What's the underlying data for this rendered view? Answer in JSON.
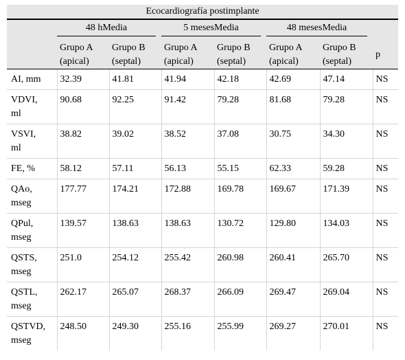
{
  "table": {
    "title": "Ecocardiografía postimplante",
    "groups": [
      "48 hMedia",
      "5 mesesMedia",
      "48 mesesMedia"
    ],
    "subheaders": [
      [
        "Grupo A",
        "(apical)"
      ],
      [
        "Grupo B",
        "(septal)"
      ],
      [
        "Grupo A",
        "(apical)"
      ],
      [
        "Grupo B",
        "(septal)"
      ],
      [
        "Grupo A",
        "(apical)"
      ],
      [
        "Grupo B",
        "(septal)"
      ]
    ],
    "p_header": "p",
    "rows": [
      {
        "label": [
          "AI, mm"
        ],
        "values": [
          "32.39",
          "41.81",
          "41.94",
          "42.18",
          "42.69",
          "47.14"
        ],
        "p": "NS"
      },
      {
        "label": [
          "VDVI,",
          "ml"
        ],
        "values": [
          "90.68",
          "92.25",
          "91.42",
          "79.28",
          "81.68",
          "79.28"
        ],
        "p": "NS"
      },
      {
        "label": [
          "VSVI,",
          "ml"
        ],
        "values": [
          "38.82",
          "39.02",
          "38.52",
          "37.08",
          "30.75",
          "34.30"
        ],
        "p": "NS"
      },
      {
        "label": [
          "FE, %"
        ],
        "values": [
          "58.12",
          "57.11",
          "56.13",
          "55.15",
          "62.33",
          "59.28"
        ],
        "p": "NS"
      },
      {
        "label": [
          "QAo,",
          "mseg"
        ],
        "values": [
          "177.77",
          "174.21",
          "172.88",
          "169.78",
          "169.67",
          "171.39"
        ],
        "p": "NS"
      },
      {
        "label": [
          "QPul,",
          "mseg"
        ],
        "values": [
          "139.57",
          "138.63",
          "138.63",
          "130.72",
          "129.80",
          "134.03"
        ],
        "p": "NS"
      },
      {
        "label": [
          "QSTS,",
          "mseg"
        ],
        "values": [
          "251.0",
          "254.12",
          "255.42",
          "260.98",
          "260.41",
          "265.70"
        ],
        "p": "NS"
      },
      {
        "label": [
          "QSTL,",
          "mseg"
        ],
        "values": [
          "262.17",
          "265.07",
          "268.37",
          "266.09",
          "269.47",
          "269.04"
        ],
        "p": "NS"
      },
      {
        "label": [
          "QSTVD,",
          "mseg"
        ],
        "values": [
          "248.50",
          "249.30",
          "255.16",
          "255.99",
          "269.27",
          "270.01"
        ],
        "p": "NS"
      }
    ]
  }
}
